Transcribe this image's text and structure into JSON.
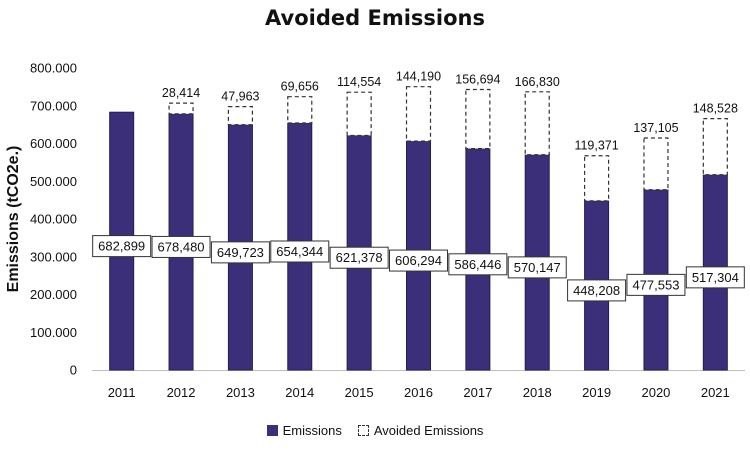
{
  "chart_data": {
    "type": "bar",
    "title": "Avoided Emissions",
    "xlabel": "",
    "ylabel": "Emissions (tCO2e.)",
    "ylim": [
      0,
      800000
    ],
    "yticks": [
      0,
      100000,
      200000,
      300000,
      400000,
      500000,
      600000,
      700000,
      800000
    ],
    "ytick_labels": [
      "0",
      "100.000",
      "200.000",
      "300.000",
      "400.000",
      "500.000",
      "600.000",
      "700.000",
      "800.000"
    ],
    "categories": [
      "2011",
      "2012",
      "2013",
      "2014",
      "2015",
      "2016",
      "2017",
      "2018",
      "2019",
      "2020",
      "2021"
    ],
    "stacked": true,
    "series": [
      {
        "name": "Emissions",
        "color": "#3b2f7a",
        "style": "solid",
        "values": [
          682899,
          678480,
          649723,
          654344,
          621378,
          606294,
          586446,
          570147,
          448208,
          477553,
          517304
        ],
        "labels": [
          "682,899",
          "678,480",
          "649,723",
          "654,344",
          "621,378",
          "606,294",
          "586,446",
          "570,147",
          "448,208",
          "477,553",
          "517,304"
        ]
      },
      {
        "name": "Avoided Emissions",
        "color": "#333333",
        "style": "dashed-outline",
        "values": [
          null,
          28414,
          47963,
          69656,
          114554,
          144190,
          156694,
          166830,
          119371,
          137105,
          148528
        ],
        "labels": [
          "",
          "28,414",
          "47,963",
          "69,656",
          "114,554",
          "144,190",
          "156,694",
          "166,830",
          "119,371",
          "137,105",
          "148,528"
        ]
      }
    ],
    "grid": false,
    "legend_position": "bottom"
  }
}
